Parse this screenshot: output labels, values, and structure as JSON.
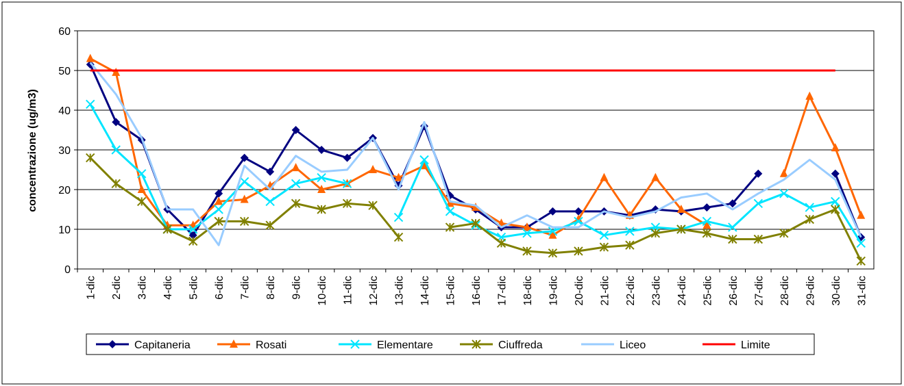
{
  "chart_data": {
    "type": "line",
    "y_label": "concentrazione  (ug/m3)",
    "categories": [
      "1-dic",
      "2-dic",
      "3-dic",
      "4-dic",
      "5-dic",
      "6-dic",
      "7-dic",
      "8-dic",
      "9-dic",
      "10-dic",
      "11-dic",
      "12-dic",
      "13-dic",
      "14-dic",
      "15-dic",
      "16-dic",
      "17-dic",
      "18-dic",
      "19-dic",
      "20-dic",
      "21-dic",
      "22-dic",
      "23-dic",
      "24-dic",
      "25-dic",
      "26-dic",
      "27-dic",
      "28-dic",
      "29-dic",
      "30-dic",
      "31-dic"
    ],
    "series": [
      {
        "name": "Capitaneria",
        "color": "#000080",
        "marker": "diamond",
        "values": [
          51.5,
          37,
          32.5,
          15,
          8.5,
          19,
          28,
          24.5,
          35,
          30,
          28,
          33,
          21,
          36,
          18.5,
          15,
          10.5,
          10.5,
          14.5,
          14.5,
          14.5,
          13.5,
          15,
          14.5,
          15.5,
          16.5,
          24,
          null,
          null,
          24,
          8
        ]
      },
      {
        "name": "Rosati",
        "color": "#ff6600",
        "marker": "triangle",
        "values": [
          53,
          49.5,
          20,
          11,
          11,
          17,
          17.5,
          21,
          25.5,
          20,
          21.5,
          25,
          23,
          26,
          16.5,
          15.5,
          11.5,
          10.5,
          8.5,
          12.5,
          23,
          13.5,
          23,
          15,
          11,
          null,
          null,
          24,
          43.5,
          30.5,
          13.5
        ]
      },
      {
        "name": "Elementare",
        "color": "#00e5ff",
        "marker": "x",
        "values": [
          41.5,
          30,
          24,
          10,
          10,
          15,
          22,
          17,
          21.5,
          23,
          21.5,
          null,
          13,
          27.5,
          14.5,
          11,
          8,
          9,
          9.5,
          12,
          8.5,
          9.5,
          10.5,
          10,
          12,
          10.5,
          16.5,
          19,
          15.5,
          17,
          6.5
        ]
      },
      {
        "name": "Ciuffreda",
        "color": "#808000",
        "marker": "star",
        "values": [
          28,
          21.5,
          17,
          10,
          7,
          12,
          12,
          11,
          16.5,
          15,
          16.5,
          16,
          8,
          null,
          10.5,
          11.5,
          6.5,
          4.5,
          4,
          4.5,
          5.5,
          6,
          9,
          10,
          9,
          7.5,
          7.5,
          9,
          12.5,
          15,
          2
        ]
      },
      {
        "name": "Liceo",
        "color": "#99ccff",
        "marker": "none",
        "values": [
          52,
          44,
          33,
          15,
          15,
          6,
          26,
          20,
          28.5,
          24.5,
          25,
          33,
          20,
          37,
          17,
          16,
          10.5,
          13.5,
          10.5,
          10.5,
          14.5,
          13,
          14.5,
          18,
          19,
          15,
          19,
          22.5,
          27.5,
          22.5,
          8
        ]
      },
      {
        "name": "Limite",
        "color": "#ff0000",
        "marker": "none",
        "values": [
          50,
          50,
          50,
          50,
          50,
          50,
          50,
          50,
          50,
          50,
          50,
          50,
          50,
          50,
          50,
          50,
          50,
          50,
          50,
          50,
          50,
          50,
          50,
          50,
          50,
          50,
          50,
          50,
          50,
          50,
          null
        ]
      }
    ],
    "ylim": [
      0,
      60
    ],
    "yticks": [
      0,
      10,
      20,
      30,
      40,
      50,
      60
    ],
    "grid": true
  }
}
